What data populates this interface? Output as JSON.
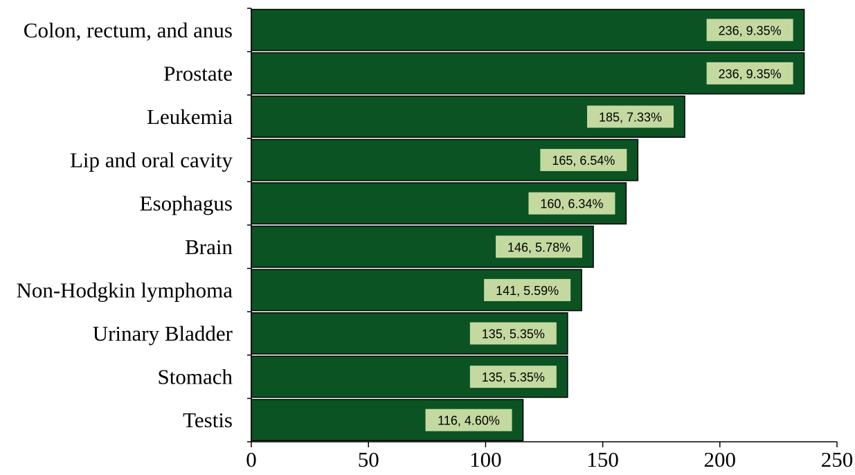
{
  "chart_data": {
    "type": "bar",
    "orientation": "horizontal",
    "categories": [
      "Colon, rectum, and anus",
      "Prostate",
      "Leukemia",
      "Lip and oral cavity",
      "Esophagus",
      "Brain",
      "Non-Hodgkin lymphoma",
      "Urinary Bladder",
      "Stomach",
      "Testis"
    ],
    "values": [
      236,
      236,
      185,
      165,
      160,
      146,
      141,
      135,
      135,
      116
    ],
    "data_labels": [
      "236, 9.35%",
      "236, 9.35%",
      "185, 7.33%",
      "165, 6.54%",
      "160, 6.34%",
      "146, 5.78%",
      "141, 5.59%",
      "135, 5.35%",
      "135, 5.35%",
      "116, 4.60%"
    ],
    "xlim": [
      0,
      250
    ],
    "xticks": [
      "0",
      "50",
      "100",
      "150",
      "200",
      "250"
    ],
    "xlabel": "",
    "ylabel": "",
    "title": "",
    "grid": false,
    "legend": "none",
    "colors": {
      "bar_fill": "#0b5323",
      "bar_stroke": "#000000",
      "label_box": "#c3d9a0",
      "axis": "#000000"
    }
  }
}
